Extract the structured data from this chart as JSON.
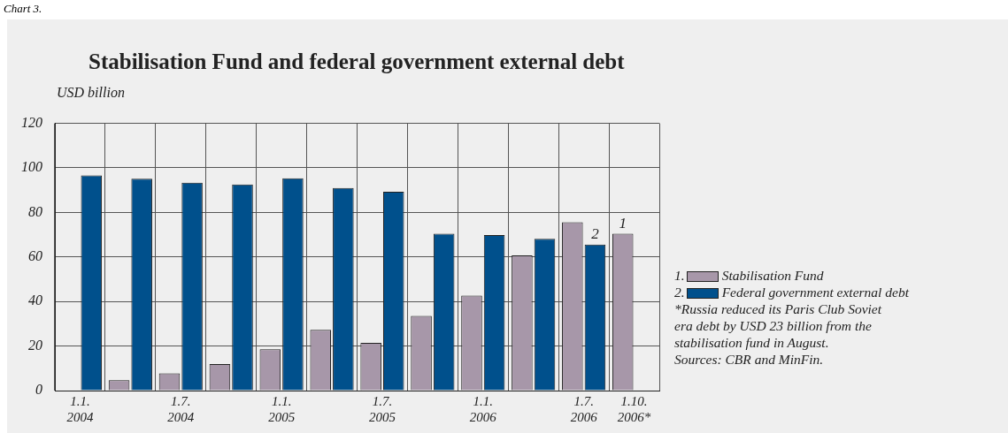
{
  "chart_data": {
    "type": "bar",
    "title": "Stabilisation Fund and federal government external debt",
    "ylabel": "USD billion",
    "categories": [
      "1.1.\n2004",
      null,
      "1.7.\n2004",
      null,
      "1.1.\n2005",
      null,
      "1.7.\n2005",
      null,
      "1.1.\n2006",
      null,
      "1.7.\n2006",
      "1.10.\n2006*"
    ],
    "series": [
      {
        "name": "Stabilisation Fund",
        "color": "#a797a9",
        "values": [
          null,
          4.7,
          7.7,
          11.9,
          18.6,
          27.3,
          21.4,
          33.5,
          42.7,
          60.7,
          75.6,
          70.4
        ]
      },
      {
        "name": "Federal government external debt",
        "color": "#00508c",
        "values": [
          96.6,
          95.1,
          93.4,
          92.6,
          95.3,
          91.0,
          89.3,
          70.4,
          69.8,
          68.2,
          65.6,
          null
        ]
      }
    ],
    "ylim": [
      0,
      120
    ],
    "yticks": [
      0,
      20,
      40,
      60,
      80,
      100,
      120
    ],
    "grid": true,
    "legend": "right",
    "annotations": [
      "Chart 3.",
      "1.",
      "2.",
      {
        "text": "2",
        "x": "1.7.\n2006",
        "y": 65.6
      },
      {
        "text": "1",
        "x": "1.10.\n2006*",
        "y": 70.4
      },
      "*Russia reduced its Paris Club Soviet era debt by USD 23 billion from the stabilisation fund in August.",
      "Sources: CBR and MinFin."
    ]
  }
}
